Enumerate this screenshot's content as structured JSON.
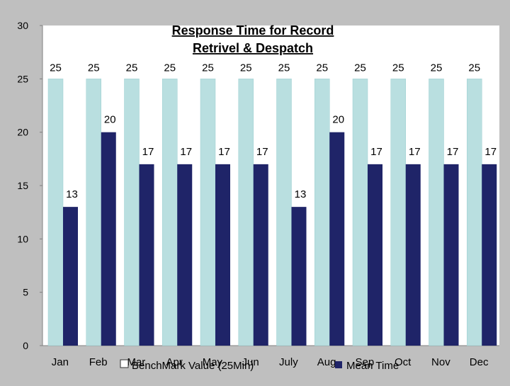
{
  "chart_data": {
    "type": "bar",
    "title_lines": [
      "Response Time for Record",
      "Retrivel & Despatch"
    ],
    "categories": [
      "Jan",
      "Feb",
      "Mar",
      "Apr",
      "May",
      "Jun",
      "July",
      "Aug",
      "Sep",
      "Oct",
      "Nov",
      "Dec"
    ],
    "series": [
      {
        "name": "BenchMark Value (25Min)",
        "values": [
          25,
          25,
          25,
          25,
          25,
          25,
          25,
          25,
          25,
          25,
          25,
          25
        ],
        "color": "#b9dfe0"
      },
      {
        "name": "Mean Time",
        "values": [
          13,
          20,
          17,
          17,
          17,
          17,
          13,
          20,
          17,
          17,
          17,
          17
        ],
        "color": "#1f2468"
      }
    ],
    "ylim": [
      0,
      30
    ],
    "yticks": [
      0,
      5,
      10,
      15,
      20,
      25,
      30
    ],
    "grid": false,
    "legend_position": "bottom",
    "plot_background": "#ffffff",
    "page_background": "#bfbfbf"
  }
}
